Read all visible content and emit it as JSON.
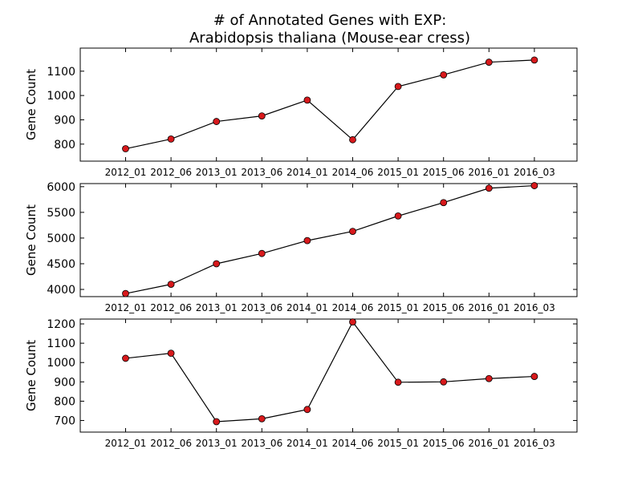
{
  "title_line1": "# of Annotated Genes with EXP:",
  "title_line2": "Arabidopsis thaliana (Mouse-ear cress)",
  "chart_data": [
    {
      "type": "line",
      "categories": [
        "2012_01",
        "2012_06",
        "2013_01",
        "2013_06",
        "2014_01",
        "2014_06",
        "2015_01",
        "2015_06",
        "2016_01",
        "2016_03"
      ],
      "values": [
        781,
        821,
        893,
        916,
        981,
        818,
        1037,
        1085,
        1137,
        1146
      ],
      "ylabel": "Gene Count",
      "ylim": [
        730,
        1195
      ],
      "yticks": [
        800,
        900,
        1000,
        1100
      ],
      "marker_color": "#d7191c",
      "line_color": "#000000"
    },
    {
      "type": "line",
      "categories": [
        "2012_01",
        "2012_06",
        "2013_01",
        "2013_06",
        "2014_01",
        "2014_06",
        "2015_01",
        "2015_06",
        "2016_01",
        "2016_03"
      ],
      "values": [
        3920,
        4100,
        4500,
        4700,
        4950,
        5130,
        5430,
        5690,
        5970,
        6020
      ],
      "ylabel": "Gene Count",
      "ylim": [
        3860,
        6060
      ],
      "yticks": [
        4000,
        4500,
        5000,
        5500,
        6000
      ],
      "marker_color": "#d7191c",
      "line_color": "#000000"
    },
    {
      "type": "line",
      "categories": [
        "2012_01",
        "2012_06",
        "2013_01",
        "2013_06",
        "2014_01",
        "2014_06",
        "2015_01",
        "2015_06",
        "2016_01",
        "2016_03"
      ],
      "values": [
        1022,
        1048,
        694,
        709,
        757,
        1210,
        898,
        900,
        917,
        928
      ],
      "ylabel": "Gene Count",
      "ylim": [
        640,
        1225
      ],
      "yticks": [
        700,
        800,
        900,
        1000,
        1100,
        1200
      ],
      "marker_color": "#d7191c",
      "line_color": "#000000"
    }
  ]
}
